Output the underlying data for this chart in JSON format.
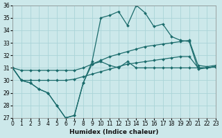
{
  "xlabel": "Humidex (Indice chaleur)",
  "bg_color": "#cce8ea",
  "grid_color": "#aad4d8",
  "line_color": "#1a6b6b",
  "xlim": [
    0,
    23
  ],
  "ylim": [
    27,
    36
  ],
  "xticks": [
    0,
    1,
    2,
    3,
    4,
    5,
    6,
    7,
    8,
    9,
    10,
    11,
    12,
    13,
    14,
    15,
    16,
    17,
    18,
    19,
    20,
    21,
    22,
    23
  ],
  "yticks": [
    27,
    28,
    29,
    30,
    31,
    32,
    33,
    34,
    35,
    36
  ],
  "series1_y": [
    31.0,
    30.0,
    29.8,
    29.3,
    29.0,
    28.0,
    27.0,
    27.2,
    29.8,
    31.3,
    31.5,
    31.2,
    31.0,
    31.5,
    31.0,
    31.0,
    31.0,
    31.0,
    31.0,
    31.0,
    31.0,
    31.0,
    31.0,
    31.1
  ],
  "series2_y": [
    31.0,
    30.0,
    29.8,
    29.3,
    29.0,
    28.0,
    27.0,
    27.2,
    29.8,
    31.5,
    35.0,
    35.2,
    35.5,
    34.4,
    36.0,
    35.4,
    34.3,
    34.5,
    33.5,
    33.2,
    33.1,
    30.9,
    31.0,
    31.1
  ],
  "series3_y": [
    31.0,
    30.8,
    30.8,
    30.8,
    30.8,
    30.8,
    30.8,
    30.8,
    31.0,
    31.3,
    31.6,
    31.9,
    32.1,
    32.3,
    32.5,
    32.7,
    32.8,
    32.9,
    33.0,
    33.1,
    33.2,
    31.2,
    31.1,
    31.2
  ],
  "series4_y": [
    31.0,
    30.0,
    30.0,
    30.0,
    30.0,
    30.0,
    30.0,
    30.1,
    30.3,
    30.5,
    30.7,
    30.9,
    31.1,
    31.3,
    31.4,
    31.5,
    31.6,
    31.7,
    31.8,
    31.9,
    31.9,
    31.0,
    31.0,
    31.1
  ]
}
